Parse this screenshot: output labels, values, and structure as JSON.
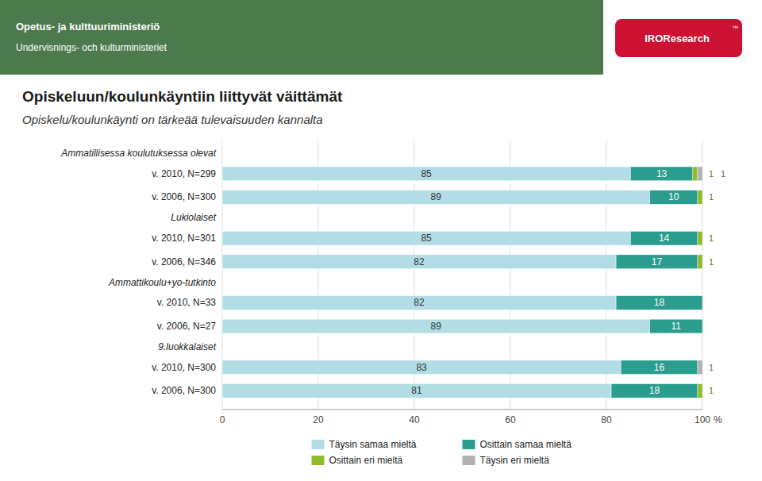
{
  "chart_data": {
    "type": "bar",
    "orientation": "horizontal",
    "stacked": true,
    "data_labels": true,
    "grid": true,
    "legend": "bottom",
    "title": "Opiskeluun/koulunkäyntiin liittyvät väittämät",
    "subtitle": "Opiskelu/koulunkäynti on tärkeää tulevaisuuden kannalta",
    "annotations": [
      "Opetus- ja kulttuuriministeriö",
      "Undervisnings- och kulturministeriet",
      "IROResearch",
      "™"
    ],
    "xlabel": "%",
    "categories": [
      "v. 2010, N=299",
      "v. 2006, N=300",
      "v. 2010, N=301",
      "v. 2006, N=346",
      "v. 2010, N=33",
      "v. 2006, N=27",
      "v. 2010, N=300",
      "v. 2006, N=300"
    ],
    "category_groups": [
      "Ammatillisessa koulutuksessa olevat",
      "Ammatillisessa koulutuksessa olevat",
      "Lukiolaiset",
      "Lukiolaiset",
      "Ammattikoulu+yo-tutkinto",
      "Ammattikoulu+yo-tutkinto",
      "9.luokkalaiset",
      "9.luokkalaiset"
    ],
    "series": [
      {
        "name": "Täysin samaa mieltä",
        "color": "#b2dde4",
        "values": [
          85,
          89,
          85,
          82,
          82,
          89,
          83,
          81
        ]
      },
      {
        "name": "Osittain samaa mieltä",
        "color": "#2a9d8f",
        "values": [
          13,
          10,
          14,
          17,
          18,
          11,
          16,
          18
        ]
      },
      {
        "name": "Osittain eri mieltä",
        "color": "#8fbc2a",
        "values": [
          1,
          1,
          1,
          1,
          0,
          0,
          0,
          1
        ]
      },
      {
        "name": "Täysin eri mieltä",
        "color": "#b0b0b0",
        "values": [
          1,
          0,
          0,
          0,
          0,
          0,
          1,
          0
        ]
      }
    ],
    "xlim": [
      0,
      100
    ],
    "xticks": [
      0,
      20,
      40,
      60,
      80,
      100
    ]
  }
}
